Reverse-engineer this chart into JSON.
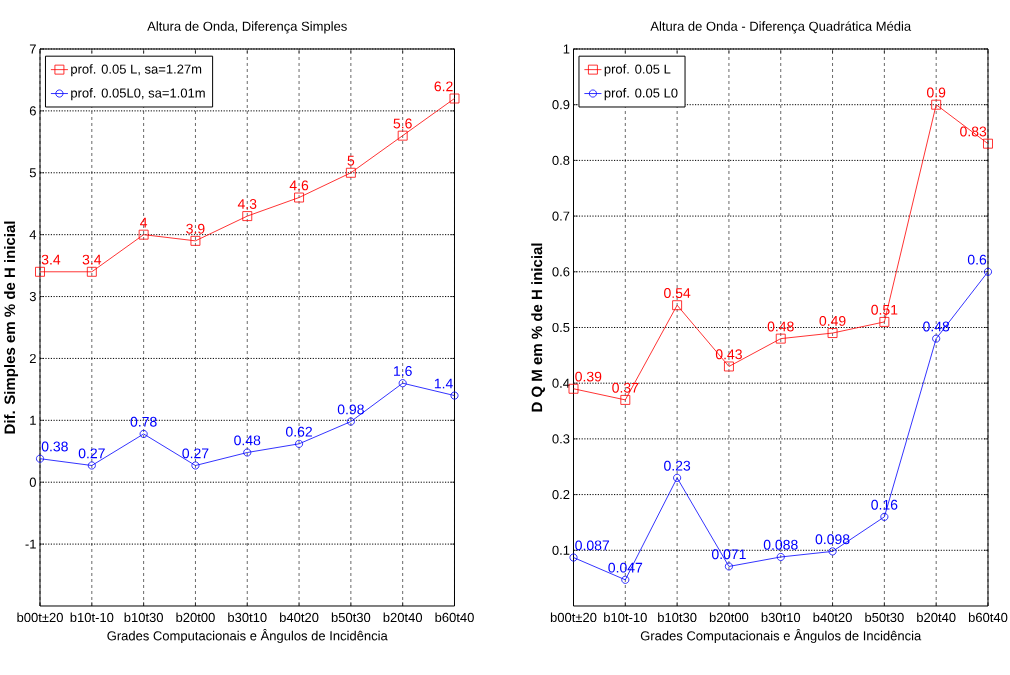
{
  "chart_data": [
    {
      "type": "line",
      "title": "Altura de Onda, Diferença Simples",
      "xlabel": "Grades Computacionais e Ângulos de Incidência",
      "ylabel": "Dif. Simples em % de H inicial",
      "categories": [
        "b00t±20",
        "b10t-10",
        "b10t30",
        "b20t00",
        "b30t10",
        "b40t20",
        "b50t30",
        "b20t40",
        "b60t40"
      ],
      "series": [
        {
          "name": "prof. 0.05 L, sa=1.27m",
          "color": "#ff0000",
          "marker": "square",
          "values": [
            3.4,
            3.4,
            4,
            3.9,
            4.3,
            4.6,
            5,
            5.6,
            6.2
          ]
        },
        {
          "name": "prof. 0.05L0, sa=1.01m",
          "color": "#0000ff",
          "marker": "circle",
          "values": [
            0.38,
            0.27,
            0.78,
            0.27,
            0.48,
            0.62,
            0.98,
            1.6,
            1.4
          ]
        }
      ],
      "ylim": [
        -2,
        7
      ],
      "yticks": [
        -1,
        0,
        1,
        2,
        3,
        4,
        5,
        6,
        7
      ],
      "grid": true,
      "legend": "top left",
      "data_labels": true,
      "line_style": "solid"
    },
    {
      "type": "line",
      "title": "Altura de Onda - Diferença Quadrática Média",
      "xlabel": "Grades Computacionais e Ângulos de Incidência",
      "ylabel": "D Q M em % de H inicial",
      "categories": [
        "b00t±20",
        "b10t-10",
        "b10t30",
        "b20t00",
        "b30t10",
        "b40t20",
        "b50t30",
        "b20t40",
        "b60t40"
      ],
      "series": [
        {
          "name": "prof. 0.05 L",
          "color": "#ff0000",
          "marker": "square",
          "values": [
            0.39,
            0.37,
            0.54,
            0.43,
            0.48,
            0.49,
            0.51,
            0.9,
            0.83
          ]
        },
        {
          "name": "prof. 0.05 L0",
          "color": "#0000ff",
          "marker": "circle",
          "values": [
            0.087,
            0.047,
            0.23,
            0.071,
            0.088,
            0.098,
            0.16,
            0.48,
            0.6
          ]
        }
      ],
      "ylim": [
        0,
        1
      ],
      "yticks": [
        0.1,
        0.2,
        0.3,
        0.4,
        0.5,
        0.6,
        0.7,
        0.8,
        0.9,
        1
      ],
      "grid": true,
      "legend": "top left",
      "data_labels": true,
      "line_style": "solid"
    }
  ]
}
